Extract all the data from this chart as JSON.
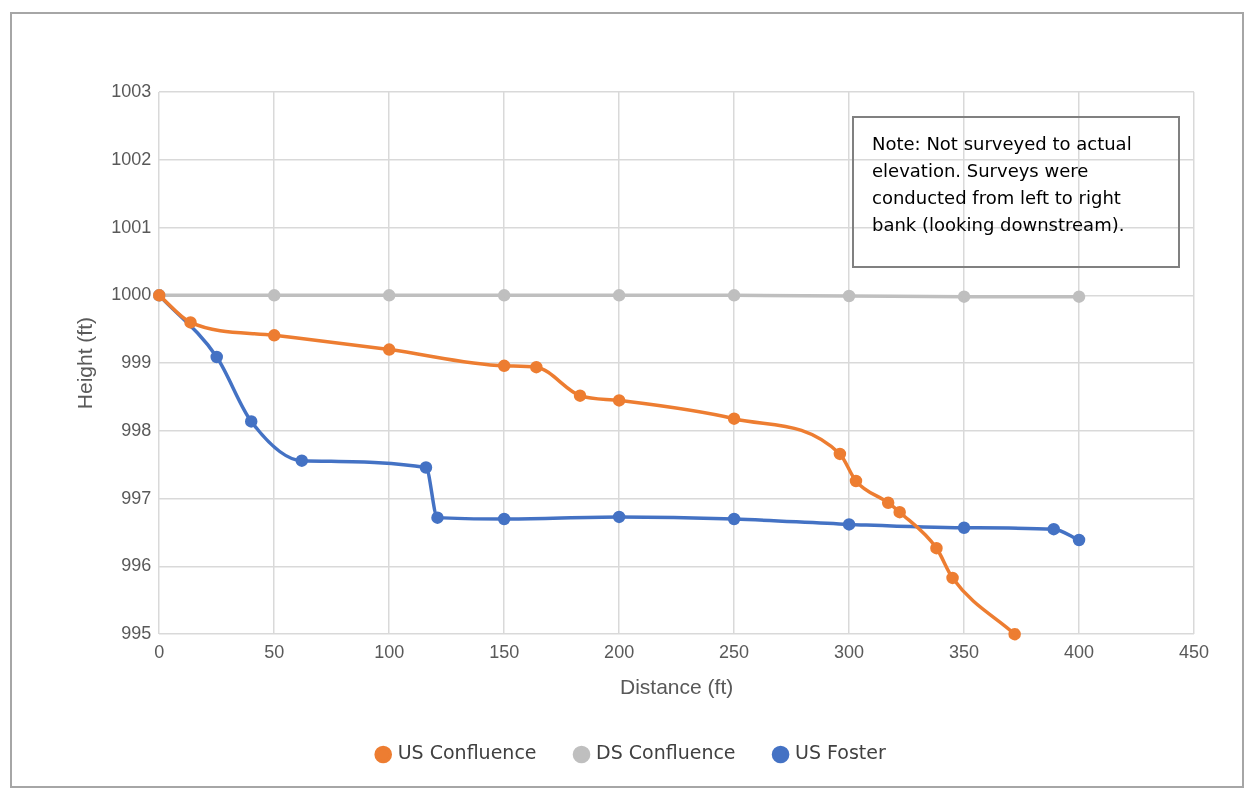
{
  "chart_data": {
    "type": "line",
    "xlabel": "Distance (ft)",
    "ylabel": "Height (ft)",
    "xlim": [
      0,
      450
    ],
    "xticks": [
      0,
      50,
      100,
      150,
      200,
      250,
      300,
      350,
      400,
      450
    ],
    "ylim": [
      995,
      1003
    ],
    "yticks": [
      995,
      996,
      997,
      998,
      999,
      1000,
      1001,
      1002,
      1003
    ],
    "grid": true,
    "legend": "bottom",
    "marker": "circle",
    "annotations": [
      "Note: Not surveyed to actual elevation. Surveys were conducted from left to right bank (looking downstream)."
    ],
    "series": [
      {
        "name": "US Confluence",
        "color": "#ed7d31",
        "x": [
          0,
          13.6,
          50,
          100,
          150,
          164,
          183,
          200,
          250,
          296,
          303,
          317,
          322,
          338,
          345,
          372
        ],
        "values": [
          1000,
          999.6,
          999.41,
          999.2,
          998.96,
          998.94,
          998.52,
          998.45,
          998.18,
          997.66,
          997.26,
          996.94,
          996.8,
          996.27,
          995.83,
          995
        ]
      },
      {
        "name": "DS Confluence",
        "color": "#bfbfbf",
        "x": [
          0,
          50,
          100,
          150,
          200,
          250,
          300,
          350,
          400
        ],
        "values": [
          1000,
          1000,
          1000,
          1000,
          1000,
          1000,
          999.99,
          999.98,
          999.98
        ]
      },
      {
        "name": "US Foster",
        "color": "#4472c4",
        "x": [
          0,
          25,
          40,
          62,
          116,
          121,
          150,
          200,
          250,
          300,
          350,
          389,
          400
        ],
        "values": [
          1000,
          999.09,
          998.14,
          997.56,
          997.46,
          996.72,
          996.7,
          996.73,
          996.7,
          996.62,
          996.57,
          996.55,
          996.39
        ]
      }
    ]
  }
}
